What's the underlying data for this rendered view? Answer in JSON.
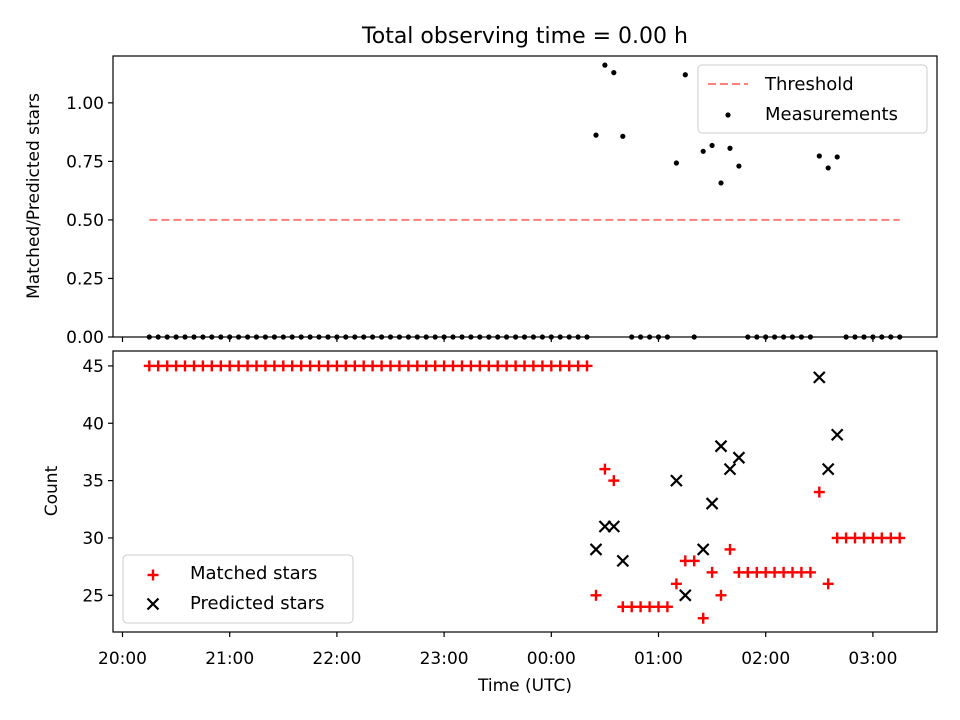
{
  "chart_data": {
    "title": "Total observing time = 0.00 h",
    "x_ticks": [
      "20:00",
      "21:00",
      "22:00",
      "23:00",
      "00:00",
      "01:00",
      "02:00",
      "03:00"
    ],
    "xlabel": "Time (UTC)",
    "panels": [
      {
        "type": "scatter+line",
        "ylabel": "Matched/Predicted stars",
        "y_ticks": [
          "0.00",
          "0.25",
          "0.50",
          "0.75",
          "1.00"
        ],
        "ylim": [
          0,
          1.2
        ],
        "legend": {
          "position": "upper-right",
          "entries": [
            "Threshold",
            "Measurements"
          ]
        },
        "threshold": {
          "name": "Threshold",
          "value": 0.5,
          "color": "#ff7f7f",
          "style": "dashed"
        },
        "measurements": {
          "name": "Measurements",
          "color": "#000000",
          "points": [
            [
              0.417,
              0.862
            ],
            [
              0.5,
              1.161
            ],
            [
              0.583,
              1.129
            ],
            [
              0.667,
              0.857
            ],
            [
              1.167,
              0.743
            ],
            [
              1.25,
              1.12
            ],
            [
              1.417,
              0.793
            ],
            [
              1.5,
              0.818
            ],
            [
              1.583,
              0.658
            ],
            [
              1.667,
              0.806
            ],
            [
              1.75,
              0.73
            ],
            [
              2.5,
              0.773
            ],
            [
              2.583,
              0.722
            ],
            [
              2.667,
              0.769
            ]
          ],
          "zero_points": [
            -3.75,
            -3.667,
            -3.583,
            -3.5,
            -3.417,
            -3.333,
            -3.25,
            -3.167,
            -3.083,
            -3.0,
            -2.917,
            -2.833,
            -2.75,
            -2.667,
            -2.583,
            -2.5,
            -2.417,
            -2.333,
            -2.25,
            -2.167,
            -2.083,
            -2.0,
            -1.917,
            -1.833,
            -1.75,
            -1.667,
            -1.583,
            -1.5,
            -1.417,
            -1.333,
            -1.25,
            -1.167,
            -1.083,
            -1.0,
            -0.917,
            -0.833,
            -0.75,
            -0.667,
            -0.583,
            -0.5,
            -0.417,
            -0.333,
            -0.25,
            -0.167,
            -0.083,
            0.0,
            0.083,
            0.167,
            0.25,
            0.333,
            0.75,
            0.833,
            0.917,
            1.0,
            1.083,
            1.333,
            1.833,
            1.917,
            2.0,
            2.083,
            2.167,
            2.25,
            2.333,
            2.417,
            2.75,
            2.833,
            2.917,
            3.0,
            3.083,
            3.167,
            3.25
          ]
        }
      },
      {
        "type": "scatter",
        "ylabel": "Count",
        "y_ticks": [
          "25",
          "30",
          "35",
          "40",
          "45"
        ],
        "ylim": [
          21.8,
          46.3
        ],
        "legend": {
          "position": "lower-left",
          "entries": [
            "Matched stars",
            "Predicted stars"
          ]
        },
        "matched": {
          "name": "Matched stars",
          "color": "#ff0000",
          "marker": "+",
          "points": [
            [
              -3.75,
              45
            ],
            [
              -3.667,
              45
            ],
            [
              -3.583,
              45
            ],
            [
              -3.5,
              45
            ],
            [
              -3.417,
              45
            ],
            [
              -3.333,
              45
            ],
            [
              -3.25,
              45
            ],
            [
              -3.167,
              45
            ],
            [
              -3.083,
              45
            ],
            [
              -3.0,
              45
            ],
            [
              -2.917,
              45
            ],
            [
              -2.833,
              45
            ],
            [
              -2.75,
              45
            ],
            [
              -2.667,
              45
            ],
            [
              -2.583,
              45
            ],
            [
              -2.5,
              45
            ],
            [
              -2.417,
              45
            ],
            [
              -2.333,
              45
            ],
            [
              -2.25,
              45
            ],
            [
              -2.167,
              45
            ],
            [
              -2.083,
              45
            ],
            [
              -2.0,
              45
            ],
            [
              -1.917,
              45
            ],
            [
              -1.833,
              45
            ],
            [
              -1.75,
              45
            ],
            [
              -1.667,
              45
            ],
            [
              -1.583,
              45
            ],
            [
              -1.5,
              45
            ],
            [
              -1.417,
              45
            ],
            [
              -1.333,
              45
            ],
            [
              -1.25,
              45
            ],
            [
              -1.167,
              45
            ],
            [
              -1.083,
              45
            ],
            [
              -1.0,
              45
            ],
            [
              -0.917,
              45
            ],
            [
              -0.833,
              45
            ],
            [
              -0.75,
              45
            ],
            [
              -0.667,
              45
            ],
            [
              -0.583,
              45
            ],
            [
              -0.5,
              45
            ],
            [
              -0.417,
              45
            ],
            [
              -0.333,
              45
            ],
            [
              -0.25,
              45
            ],
            [
              -0.167,
              45
            ],
            [
              -0.083,
              45
            ],
            [
              0.0,
              45
            ],
            [
              0.083,
              45
            ],
            [
              0.167,
              45
            ],
            [
              0.25,
              45
            ],
            [
              0.333,
              45
            ],
            [
              0.417,
              25
            ],
            [
              0.5,
              36
            ],
            [
              0.583,
              35
            ],
            [
              0.667,
              24
            ],
            [
              0.75,
              24
            ],
            [
              0.833,
              24
            ],
            [
              0.917,
              24
            ],
            [
              1.0,
              24
            ],
            [
              1.083,
              24
            ],
            [
              1.167,
              26
            ],
            [
              1.25,
              28
            ],
            [
              1.333,
              28
            ],
            [
              1.417,
              23
            ],
            [
              1.5,
              27
            ],
            [
              1.583,
              25
            ],
            [
              1.667,
              29
            ],
            [
              1.75,
              27
            ],
            [
              1.833,
              27
            ],
            [
              1.917,
              27
            ],
            [
              2.0,
              27
            ],
            [
              2.083,
              27
            ],
            [
              2.167,
              27
            ],
            [
              2.25,
              27
            ],
            [
              2.333,
              27
            ],
            [
              2.417,
              27
            ],
            [
              2.5,
              34
            ],
            [
              2.583,
              26
            ],
            [
              2.667,
              30
            ],
            [
              2.75,
              30
            ],
            [
              2.833,
              30
            ],
            [
              2.917,
              30
            ],
            [
              3.0,
              30
            ],
            [
              3.083,
              30
            ],
            [
              3.167,
              30
            ],
            [
              3.25,
              30
            ]
          ]
        },
        "predicted": {
          "name": "Predicted stars",
          "color": "#000000",
          "marker": "x",
          "points": [
            [
              0.417,
              29
            ],
            [
              0.5,
              31
            ],
            [
              0.583,
              31
            ],
            [
              0.667,
              28
            ],
            [
              1.167,
              35
            ],
            [
              1.25,
              25
            ],
            [
              1.417,
              29
            ],
            [
              1.5,
              33
            ],
            [
              1.583,
              38
            ],
            [
              1.667,
              36
            ],
            [
              1.75,
              37
            ],
            [
              2.5,
              44
            ],
            [
              2.583,
              36
            ],
            [
              2.667,
              39
            ]
          ]
        }
      }
    ]
  }
}
